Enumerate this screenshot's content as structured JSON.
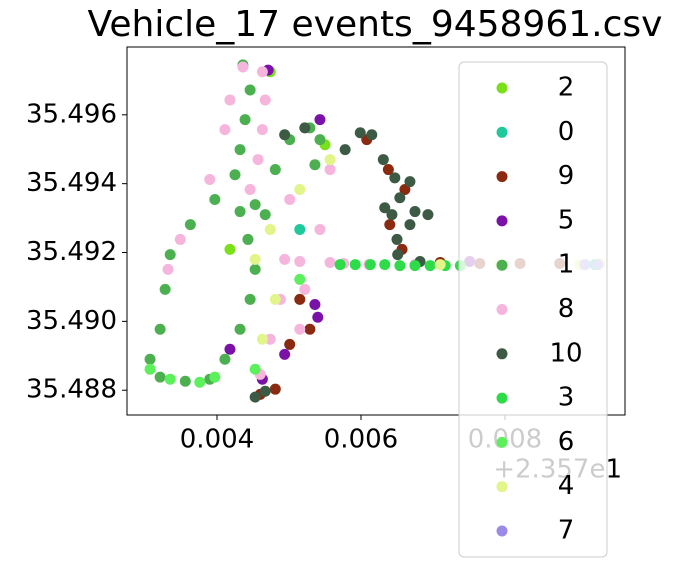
{
  "chart_data": {
    "type": "scatter",
    "title": "Vehicle_17 events_9458961.csv",
    "x_offset_label": "+2.357e1",
    "xlim": [
      0.00275,
      0.009667
    ],
    "ylim": [
      35.48728,
      35.49797
    ],
    "xticks": [
      0.004,
      0.006,
      0.008
    ],
    "yticks": [
      35.488,
      {
        "value": 35.49,
        "label": "35.490"
      },
      35.492,
      35.494,
      35.496
    ],
    "legend": "upper right",
    "series": [
      {
        "name": "2",
        "color": "#7ae01a",
        "x": [
          0.00474,
          0.0055,
          0.00418
        ],
        "values": [
          35.49725,
          35.49513,
          35.49209
        ]
      },
      {
        "name": "0",
        "color": "#20c99b",
        "x": [
          0.00515,
          0.00925
        ],
        "values": [
          35.49267,
          35.49165
        ]
      },
      {
        "name": "9",
        "color": "#8a2a10",
        "x": [
          0.00608,
          0.00638,
          0.00661,
          0.0064,
          0.00657,
          0.0071,
          0.00765,
          0.00821,
          0.00876,
          0.00501,
          0.00529,
          0.00515,
          0.00481,
          0.0046
        ],
        "values": [
          35.49528,
          35.49441,
          35.49383,
          35.49281,
          35.49209,
          35.49171,
          35.49168,
          35.49168,
          35.49168,
          35.48933,
          35.48977,
          35.49064,
          35.48803,
          35.48788
        ]
      },
      {
        "name": "5",
        "color": "#7b12a8",
        "x": [
          0.00471,
          0.00543,
          0.00536,
          0.0054,
          0.00494,
          0.00463,
          0.00751,
          0.00418
        ],
        "values": [
          35.4973,
          35.49586,
          35.49049,
          35.49012,
          35.48904,
          35.48832,
          35.49174,
          35.48919
        ]
      },
      {
        "name": "1",
        "color": "#4caf50",
        "x": [
          0.00436,
          0.00446,
          0.00439,
          0.00432,
          0.00425,
          0.00397,
          0.00363,
          0.00335,
          0.00328,
          0.00321,
          0.00307,
          0.00321,
          0.00356,
          0.0039,
          0.00411,
          0.00432,
          0.00446,
          0.00453,
          0.00443,
          0.00432,
          0.00453,
          0.00467,
          0.00481,
          0.00501,
          0.00529,
          0.00543,
          0.00536
        ],
        "values": [
          35.49745,
          35.49672,
          35.49586,
          35.49499,
          35.49426,
          35.49354,
          35.49281,
          35.49194,
          35.49093,
          35.48977,
          35.4889,
          35.48838,
          35.48826,
          35.48832,
          35.4889,
          35.48977,
          35.49064,
          35.49151,
          35.49238,
          35.49319,
          35.49339,
          35.4931,
          35.49441,
          35.49528,
          35.49562,
          35.49528,
          35.49455
        ]
      },
      {
        "name": "8",
        "color": "#f5b5dc",
        "x": [
          0.00436,
          0.00463,
          0.00467,
          0.00463,
          0.00457,
          0.00446,
          0.00418,
          0.00411,
          0.0039,
          0.00349,
          0.00332,
          0.00501,
          0.00494,
          0.00488,
          0.00474,
          0.0046,
          0.00557,
          0.00543,
          0.00522,
          0.00515,
          0.00515,
          0.00557,
          0.00576,
          0.00611,
          0.00675
        ],
        "values": [
          35.49739,
          35.49725,
          35.49643,
          35.49557,
          35.4947,
          35.49383,
          35.49643,
          35.49557,
          35.49412,
          35.49238,
          35.49151,
          35.49354,
          35.4918,
          35.49064,
          35.48948,
          35.48846,
          35.49441,
          35.49267,
          35.49093,
          35.48977,
          35.49174,
          35.49171,
          35.49168,
          35.49165,
          35.49165
        ]
      },
      {
        "name": "10",
        "color": "#3d5a44",
        "x": [
          0.00578,
          0.00599,
          0.00615,
          0.00631,
          0.00647,
          0.00668,
          0.00654,
          0.00633,
          0.00643,
          0.00675,
          0.00693,
          0.00668,
          0.0065,
          0.00651,
          0.00682,
          0.00522,
          0.00494,
          0.00453,
          0.00467
        ],
        "values": [
          35.49499,
          35.49548,
          35.49542,
          35.4947,
          35.49417,
          35.49406,
          35.49359,
          35.4933,
          35.4931,
          35.49319,
          35.4931,
          35.49281,
          35.49238,
          35.49194,
          35.49174,
          35.49562,
          35.49542,
          35.4878,
          35.48797
        ]
      },
      {
        "name": "3",
        "color": "#2ddc48",
        "x": [
          0.00571,
          0.00592,
          0.00613,
          0.00633,
          0.00654,
          0.00675,
          0.00696,
          0.00717,
          0.00738
        ],
        "values": [
          35.49165,
          35.49165,
          35.49165,
          35.49165,
          35.49162,
          35.49162,
          35.49162,
          35.49162,
          35.49162
        ]
      },
      {
        "name": "6",
        "color": "#5cf05c",
        "x": [
          0.00307,
          0.00335,
          0.00376,
          0.00397,
          0.00453,
          0.00515
        ],
        "values": [
          35.48861,
          35.48832,
          35.48823,
          35.48838,
          35.48861,
          35.49122
        ]
      },
      {
        "name": "4",
        "color": "#e2f58a",
        "x": [
          0.00515,
          0.00557,
          0.00474,
          0.00453,
          0.00481,
          0.00463,
          0.0071,
          0.00793,
          0.00904,
          0.00932
        ],
        "values": [
          35.49383,
          35.4947,
          35.49267,
          35.4918,
          35.49064,
          35.48948,
          35.49165,
          35.49165,
          35.49165,
          35.49168
        ]
      },
      {
        "name": "7",
        "color": "#9b8ae6",
        "x": [
          0.00929,
          0.00911
        ],
        "values": [
          35.49165,
          35.49165
        ]
      }
    ]
  }
}
